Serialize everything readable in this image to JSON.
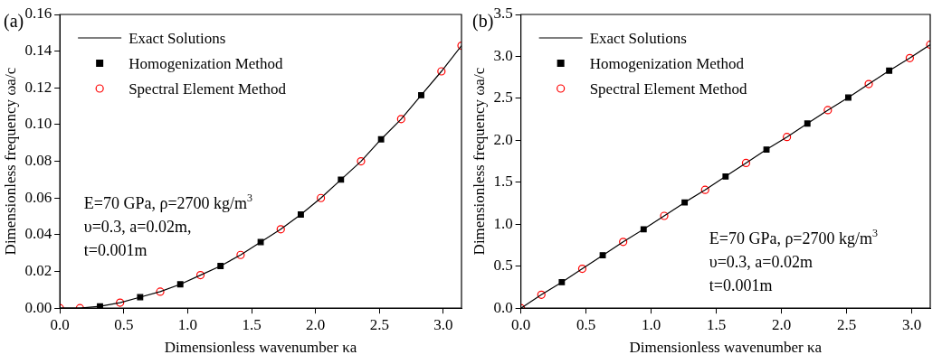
{
  "chart_data": [
    {
      "type": "line",
      "xlabel": "Dimensionless wavenumber κa",
      "ylabel": "Dimensionless frequency ωa/c",
      "legend": "top left",
      "grid": false,
      "annotations": [
        "(a)",
        "E=70 GPa, ρ=2700 kg/m$^{3}$",
        "υ=0.3, a=0.02m,",
        "t=0.001m"
      ],
      "xlim": [
        0,
        3.142
      ],
      "ylim": [
        0,
        0.16
      ],
      "xticks": [
        {
          "value": 0,
          "label": "0.0"
        },
        {
          "value": 0.5,
          "label": "0.5"
        },
        {
          "value": 1,
          "label": "1.0"
        },
        {
          "value": 1.5,
          "label": "1.5"
        },
        {
          "value": 2,
          "label": "2.0"
        },
        {
          "value": 2.5,
          "label": "2.5"
        },
        {
          "value": 3,
          "label": "3.0"
        }
      ],
      "yticks": [
        {
          "value": 0,
          "label": "0.00"
        },
        {
          "value": 0.02,
          "label": "0.02"
        },
        {
          "value": 0.04,
          "label": "0.04"
        },
        {
          "value": 0.06,
          "label": "0.06"
        },
        {
          "value": 0.08,
          "label": "0.08"
        },
        {
          "value": 0.1,
          "label": "0.10"
        },
        {
          "value": 0.12,
          "label": "0.12"
        },
        {
          "value": 0.14,
          "label": "0.14"
        },
        {
          "value": 0.16,
          "label": "0.16"
        }
      ],
      "series": [
        {
          "name": "Exact Solutions",
          "type": "line",
          "color": "#000000",
          "marker": "none",
          "line_style": "solid",
          "x": [
            0,
            0.157,
            0.314,
            0.471,
            0.628,
            0.785,
            0.942,
            1.1,
            1.257,
            1.414,
            1.571,
            1.728,
            1.885,
            2.042,
            2.199,
            2.356,
            2.513,
            2.67,
            2.827,
            2.985,
            3.142
          ],
          "values": [
            0,
            0.0,
            0.001,
            0.003,
            0.006,
            0.009,
            0.013,
            0.018,
            0.023,
            0.029,
            0.036,
            0.043,
            0.051,
            0.06,
            0.07,
            0.08,
            0.092,
            0.103,
            0.116,
            0.129,
            0.143
          ]
        },
        {
          "name": "Homogenization Method",
          "type": "scatter",
          "color": "#000000",
          "marker": "square",
          "x": [
            0.314,
            0.628,
            0.942,
            1.257,
            1.571,
            1.885,
            2.199,
            2.513,
            2.827
          ],
          "values": [
            0.001,
            0.006,
            0.013,
            0.023,
            0.036,
            0.051,
            0.07,
            0.092,
            0.116
          ]
        },
        {
          "name": "Spectral Element Method",
          "type": "scatter",
          "color": "#ff0000",
          "marker": "circle",
          "x": [
            0,
            0.157,
            0.471,
            0.785,
            1.1,
            1.414,
            1.728,
            2.042,
            2.356,
            2.67,
            2.985,
            3.142
          ],
          "values": [
            0,
            0.0,
            0.003,
            0.009,
            0.018,
            0.029,
            0.043,
            0.06,
            0.08,
            0.103,
            0.129,
            0.143
          ]
        }
      ]
    },
    {
      "type": "line",
      "xlabel": "Dimensionless wavenumber κa",
      "ylabel": "Dimensionless frequency ωa/c",
      "legend": "top left",
      "grid": false,
      "annotations": [
        "(b)",
        "E=70 GPa, ρ=2700 kg/m$^{3}$",
        "υ=0.3, a=0.02m",
        "t=0.001m"
      ],
      "xlim": [
        0,
        3.142
      ],
      "ylim": [
        0,
        3.5
      ],
      "xticks": [
        {
          "value": 0,
          "label": "0.0"
        },
        {
          "value": 0.5,
          "label": "0.5"
        },
        {
          "value": 1,
          "label": "1.0"
        },
        {
          "value": 1.5,
          "label": "1.5"
        },
        {
          "value": 2,
          "label": "2.0"
        },
        {
          "value": 2.5,
          "label": "2.5"
        },
        {
          "value": 3,
          "label": "3.0"
        }
      ],
      "yticks": [
        {
          "value": 0,
          "label": "0.0"
        },
        {
          "value": 0.5,
          "label": "0.5"
        },
        {
          "value": 1,
          "label": "1.0"
        },
        {
          "value": 1.5,
          "label": "1.5"
        },
        {
          "value": 2,
          "label": "2.0"
        },
        {
          "value": 2.5,
          "label": "2.5"
        },
        {
          "value": 3,
          "label": "3.0"
        },
        {
          "value": 3.5,
          "label": "3.5"
        }
      ],
      "series": [
        {
          "name": "Exact Solutions",
          "type": "line",
          "color": "#000000",
          "marker": "none",
          "line_style": "solid",
          "x": [
            0,
            0.157,
            0.314,
            0.471,
            0.628,
            0.785,
            0.942,
            1.1,
            1.257,
            1.414,
            1.571,
            1.728,
            1.885,
            2.042,
            2.199,
            2.356,
            2.513,
            2.67,
            2.827,
            2.985,
            3.142
          ],
          "values": [
            0,
            0.16,
            0.31,
            0.47,
            0.63,
            0.79,
            0.94,
            1.1,
            1.26,
            1.41,
            1.57,
            1.73,
            1.89,
            2.04,
            2.2,
            2.36,
            2.51,
            2.67,
            2.83,
            2.98,
            3.14
          ]
        },
        {
          "name": "Homogenization Method",
          "type": "scatter",
          "color": "#000000",
          "marker": "square",
          "x": [
            0.314,
            0.628,
            0.942,
            1.257,
            1.571,
            1.885,
            2.199,
            2.513,
            2.827
          ],
          "values": [
            0.31,
            0.63,
            0.94,
            1.26,
            1.57,
            1.89,
            2.2,
            2.51,
            2.83
          ]
        },
        {
          "name": "Spectral Element Method",
          "type": "scatter",
          "color": "#ff0000",
          "marker": "circle",
          "x": [
            0,
            0.157,
            0.471,
            0.785,
            1.1,
            1.414,
            1.728,
            2.042,
            2.356,
            2.67,
            2.985,
            3.142
          ],
          "values": [
            0,
            0.16,
            0.47,
            0.79,
            1.1,
            1.41,
            1.73,
            2.04,
            2.36,
            2.67,
            2.98,
            3.14
          ]
        }
      ]
    }
  ]
}
